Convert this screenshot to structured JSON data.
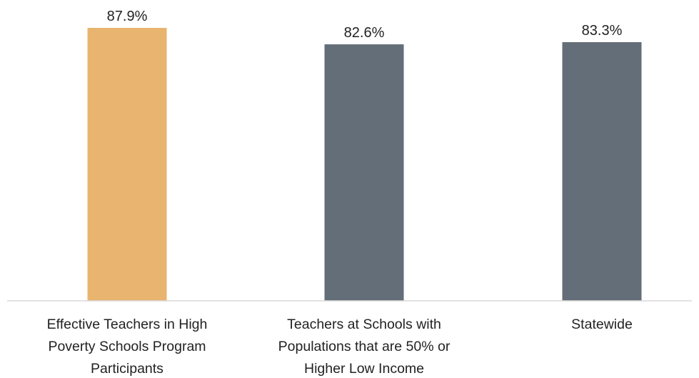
{
  "chart_data": {
    "type": "bar",
    "categories": [
      [
        "Effective Teachers in High",
        "Poverty Schools Program",
        "Participants"
      ],
      [
        "Teachers at Schools with",
        "Populations that are 50% or",
        "Higher Low Income"
      ],
      [
        "Statewide"
      ]
    ],
    "values": [
      87.9,
      82.6,
      83.3
    ],
    "value_labels": [
      "87.9%",
      "82.6%",
      "83.3%"
    ],
    "bar_colors": [
      "#E8B46F",
      "#646E78",
      "#646E78"
    ],
    "title": "",
    "xlabel": "",
    "ylabel": "",
    "grid": false,
    "legend": "none"
  }
}
